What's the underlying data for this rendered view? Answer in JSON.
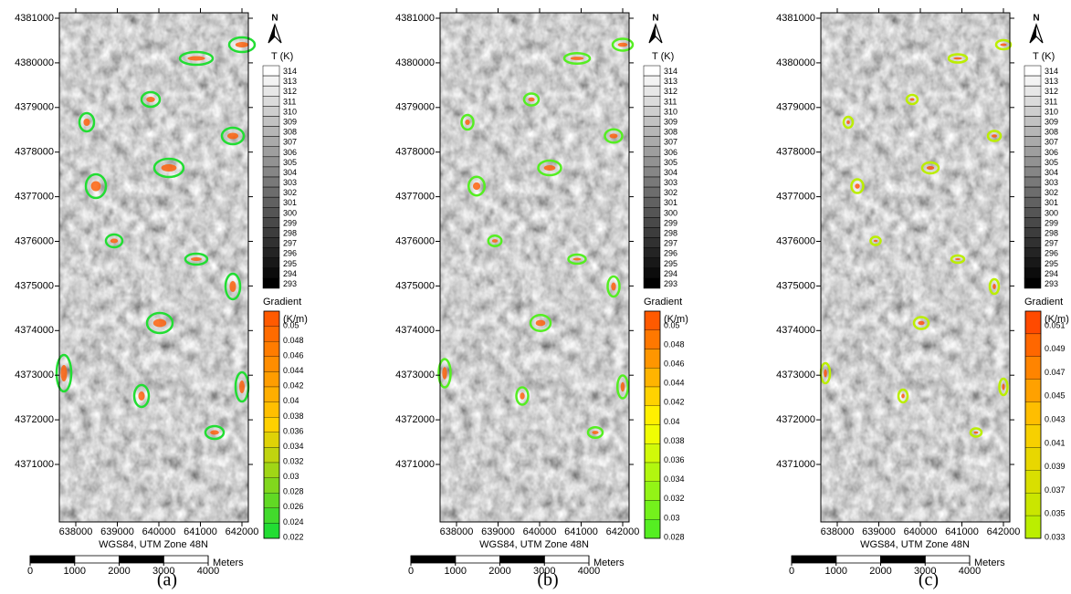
{
  "panels": [
    {
      "label": "(a)",
      "north": "N",
      "map": {
        "yticks": [
          4381000,
          4380000,
          4379000,
          4378000,
          4377000,
          4376000,
          4375000,
          4374000,
          4373000,
          4372000,
          4371000
        ],
        "xticks": [
          638000,
          639000,
          640000,
          641000,
          642000
        ],
        "crs": "WGS84, UTM Zone 48N"
      },
      "scale_bar": {
        "ticks": [
          0,
          1000,
          2000,
          3000,
          4000
        ],
        "unit": "Meters"
      },
      "temperature_legend": {
        "title": "T (K)",
        "levels": [
          314,
          313,
          312,
          311,
          310,
          309,
          308,
          307,
          306,
          305,
          304,
          303,
          302,
          301,
          300,
          299,
          298,
          297,
          296,
          295,
          294,
          293
        ]
      },
      "gradient_legend": {
        "title": "Gradient",
        "unit": "(K/m)",
        "colors": [
          "#ff5a00",
          "#ffd000",
          "#22dd33"
        ],
        "levels": [
          0.05,
          0.048,
          0.046,
          0.044,
          0.042,
          0.04,
          0.038,
          0.036,
          0.034,
          0.032,
          0.03,
          0.028,
          0.026,
          0.024,
          0.022
        ]
      }
    },
    {
      "label": "(b)",
      "north": "N",
      "map": {
        "yticks": [
          4381000,
          4380000,
          4379000,
          4378000,
          4377000,
          4376000,
          4375000,
          4374000,
          4373000,
          4372000,
          4371000
        ],
        "xticks": [
          638000,
          639000,
          640000,
          641000,
          642000
        ],
        "crs": "WGS84, UTM Zone 48N"
      },
      "scale_bar": {
        "ticks": [
          0,
          1000,
          2000,
          3000,
          4000
        ],
        "unit": "Meters"
      },
      "temperature_legend": {
        "title": "T (K)",
        "levels": [
          314,
          313,
          312,
          311,
          310,
          309,
          308,
          307,
          306,
          305,
          304,
          303,
          302,
          301,
          300,
          299,
          298,
          297,
          296,
          295,
          294,
          293
        ]
      },
      "gradient_legend": {
        "title": "Gradient",
        "unit": "(K/m)",
        "colors": [
          "#ff5a00",
          "#ffff00",
          "#55ee22"
        ],
        "levels": [
          0.05,
          0.048,
          0.046,
          0.044,
          0.042,
          0.04,
          0.038,
          0.036,
          0.034,
          0.032,
          0.03,
          0.028
        ]
      }
    },
    {
      "label": "(c)",
      "north": "N",
      "map": {
        "yticks": [
          4381000,
          4380000,
          4379000,
          4378000,
          4377000,
          4376000,
          4375000,
          4374000,
          4373000,
          4372000,
          4371000
        ],
        "xticks": [
          638000,
          639000,
          640000,
          641000,
          642000
        ],
        "crs": "WGS84, UTM Zone 48N"
      },
      "scale_bar": {
        "ticks": [
          0,
          1000,
          2000,
          3000,
          4000
        ],
        "unit": "Meters"
      },
      "temperature_legend": {
        "title": "T (K)",
        "levels": [
          314,
          313,
          312,
          311,
          310,
          309,
          308,
          307,
          306,
          305,
          304,
          303,
          302,
          301,
          300,
          299,
          298,
          297,
          296,
          295,
          294,
          293
        ]
      },
      "gradient_legend": {
        "title": "Gradient",
        "unit": "(K/m)",
        "colors": [
          "#ff4a00",
          "#ffcc00",
          "#bbee00"
        ],
        "levels": [
          0.051,
          0.049,
          0.047,
          0.045,
          0.043,
          0.041,
          0.039,
          0.037,
          0.035,
          0.033
        ]
      }
    }
  ]
}
